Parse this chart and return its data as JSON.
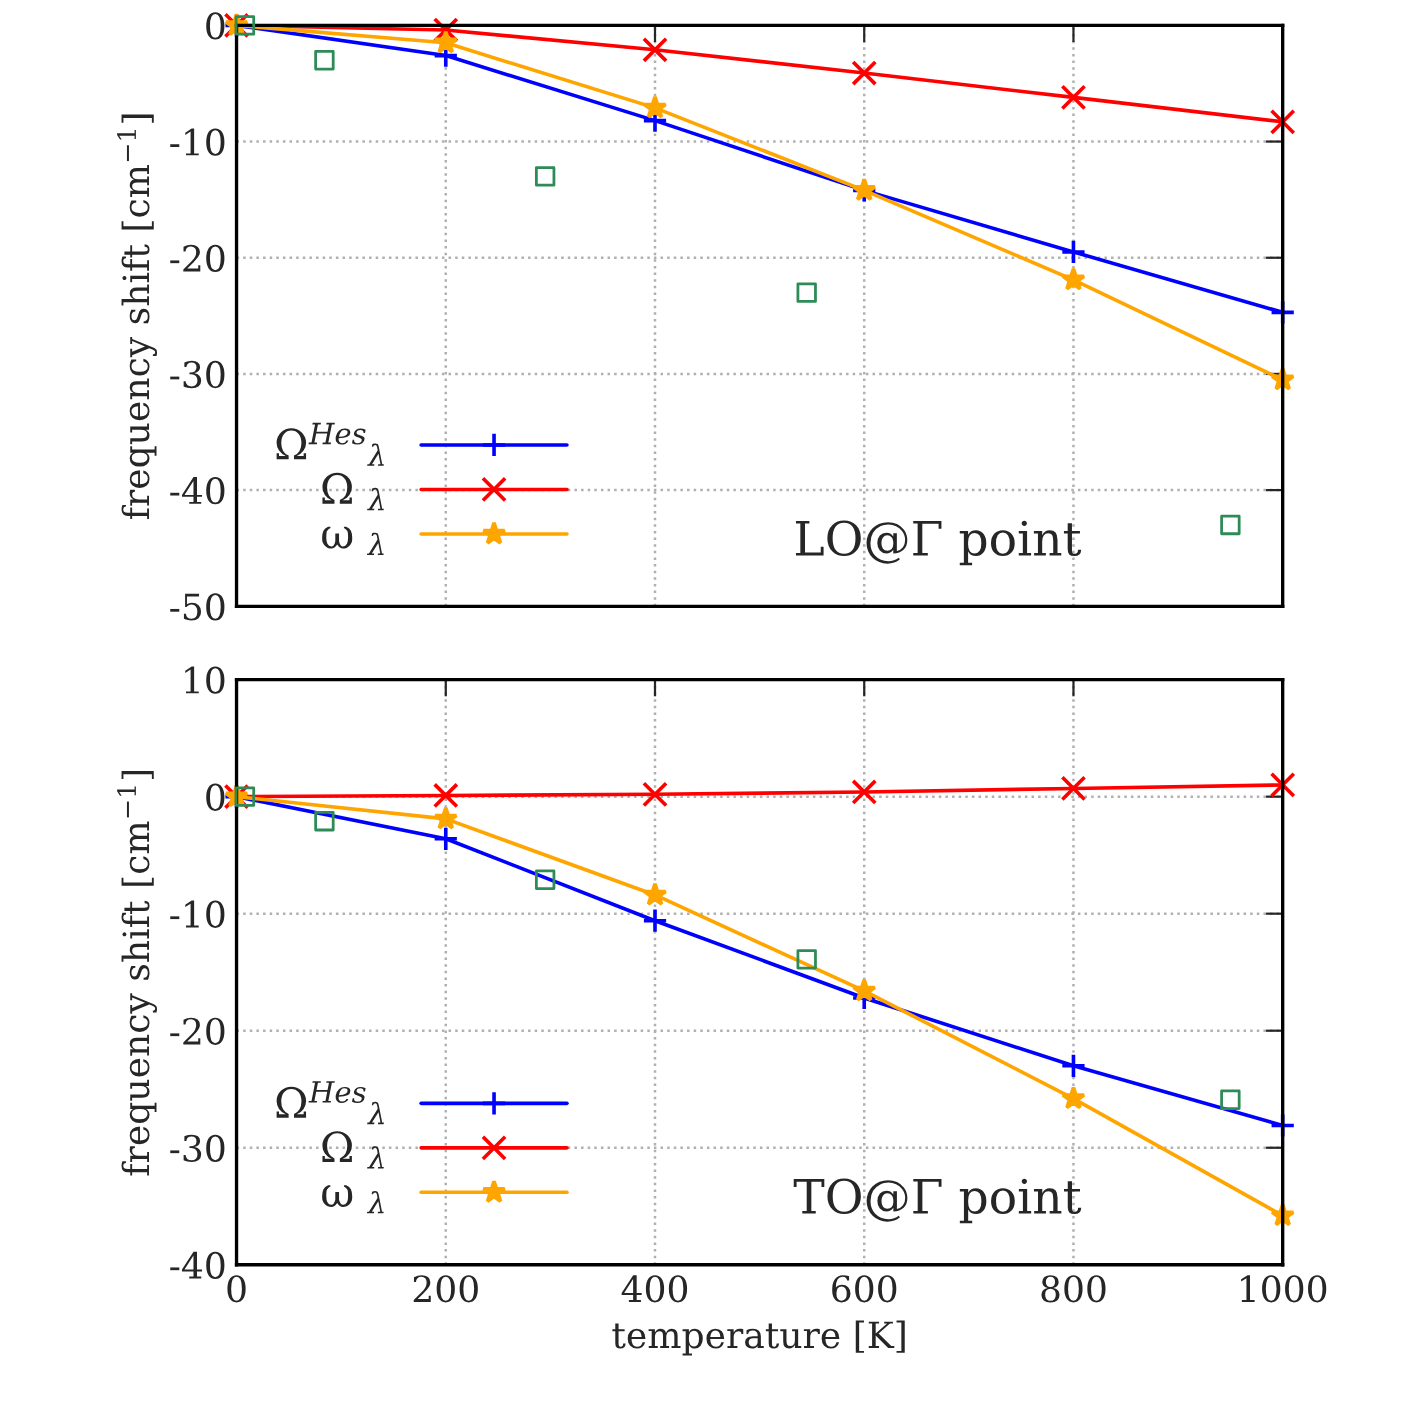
{
  "chart_data": [
    {
      "type": "line",
      "ylabel": "frequency shift [cm$^{−1}$]",
      "x": [
        0,
        200,
        400,
        600,
        800,
        1000
      ],
      "xlim": [
        0,
        1000
      ],
      "xticks": [
        0,
        200,
        400,
        600,
        800,
        1000
      ],
      "ylim": [
        -50,
        0
      ],
      "yticks": [
        -50,
        -40,
        -30,
        -20,
        -10,
        0
      ],
      "tick_labels": "y",
      "grid": true,
      "legend": "bottom left",
      "line_style": "solid",
      "annotations": [
        "LO@Γ point"
      ],
      "series": [
        {
          "name": "Ω$^{Hes}$$_{λ}$",
          "color": "#0000ff",
          "marker": "plus",
          "values": [
            0,
            -2.6,
            -8.2,
            -14.2,
            -19.5,
            -24.7
          ]
        },
        {
          "name": "Ω $_{λ}$",
          "color": "#ff0000",
          "marker": "cross",
          "values": [
            0,
            -0.4,
            -2.1,
            -4.1,
            -6.2,
            -8.3
          ]
        },
        {
          "name": "ω $_{λ}$",
          "color": "#ffa500",
          "marker": "star",
          "values": [
            0,
            -1.5,
            -7.1,
            -14.2,
            -21.9,
            -30.5
          ]
        },
        {
          "type": "scatter",
          "color": "#2e8b57",
          "marker": "square",
          "x": [
            8,
            84,
            295,
            545,
            950
          ],
          "values": [
            0,
            -3.0,
            -13.0,
            -23.0,
            -43.0
          ]
        }
      ]
    },
    {
      "type": "line",
      "xlabel": "temperature [K]",
      "ylabel": "frequency shift [cm$^{−1}$]",
      "x": [
        0,
        200,
        400,
        600,
        800,
        1000
      ],
      "xlim": [
        0,
        1000
      ],
      "xticks": [
        0,
        200,
        400,
        600,
        800,
        1000
      ],
      "ylim": [
        -40,
        10
      ],
      "yticks": [
        -40,
        -30,
        -20,
        -10,
        0,
        10
      ],
      "grid": true,
      "legend": "bottom left",
      "line_style": "solid",
      "annotations": [
        "TO@Γ point"
      ],
      "series": [
        {
          "name": "Ω$^{Hes}$$_{λ}$",
          "color": "#0000ff",
          "marker": "plus",
          "values": [
            0,
            -3.6,
            -10.6,
            -17.2,
            -23.0,
            -28.1
          ]
        },
        {
          "name": "Ω $_{λ}$",
          "color": "#ff0000",
          "marker": "cross",
          "values": [
            0,
            0.1,
            0.2,
            0.4,
            0.7,
            1.0
          ]
        },
        {
          "name": "ω $_{λ}$",
          "color": "#ffa500",
          "marker": "star",
          "values": [
            0,
            -1.9,
            -8.4,
            -16.6,
            -25.8,
            -35.8
          ]
        },
        {
          "type": "scatter",
          "color": "#2e8b57",
          "marker": "square",
          "x": [
            8,
            84,
            295,
            545,
            950
          ],
          "values": [
            0,
            -2.1,
            -7.1,
            -13.9,
            -25.9
          ]
        }
      ]
    }
  ]
}
